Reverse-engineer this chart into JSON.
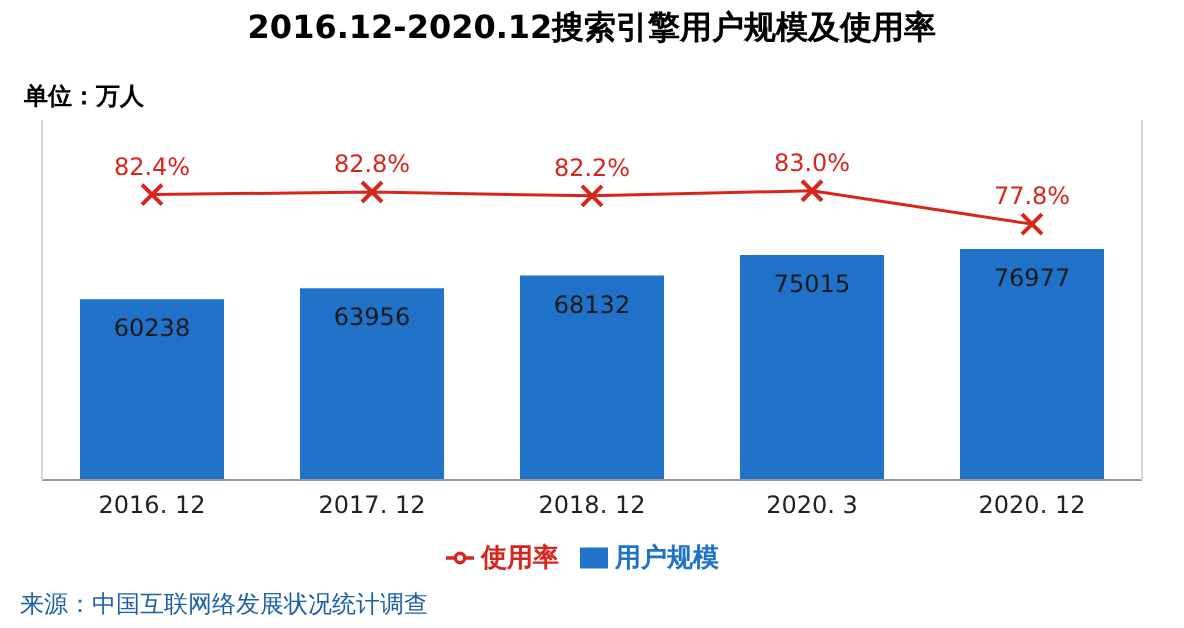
{
  "chart_data": {
    "type": "bar",
    "title": "2016.12-2020.12搜索引擎用户规模及使用率",
    "categories": [
      "2016. 12",
      "2017. 12",
      "2018. 12",
      "2020. 3",
      "2020. 12"
    ],
    "series": [
      {
        "name": "用户规模",
        "type": "bar",
        "color": "#1f72c8",
        "values": [
          60238,
          63956,
          68132,
          75015,
          76977
        ]
      },
      {
        "name": "使用率",
        "type": "line",
        "axis": "y2",
        "color": "#d7261e",
        "values": [
          82.4,
          82.8,
          82.2,
          83.0,
          77.8
        ],
        "value_labels": [
          "82.4%",
          "82.8%",
          "82.2%",
          "83.0%",
          "77.8%"
        ]
      }
    ],
    "ylim": [
      0,
      120000
    ],
    "y2lim": [
      38,
      94
    ],
    "tick_labels": "x",
    "data_labels": true,
    "marker": "cross",
    "legend": "bottom",
    "annotations": [
      "单位：万人",
      "来源：中国互联网络发展状况统计调查"
    ]
  }
}
